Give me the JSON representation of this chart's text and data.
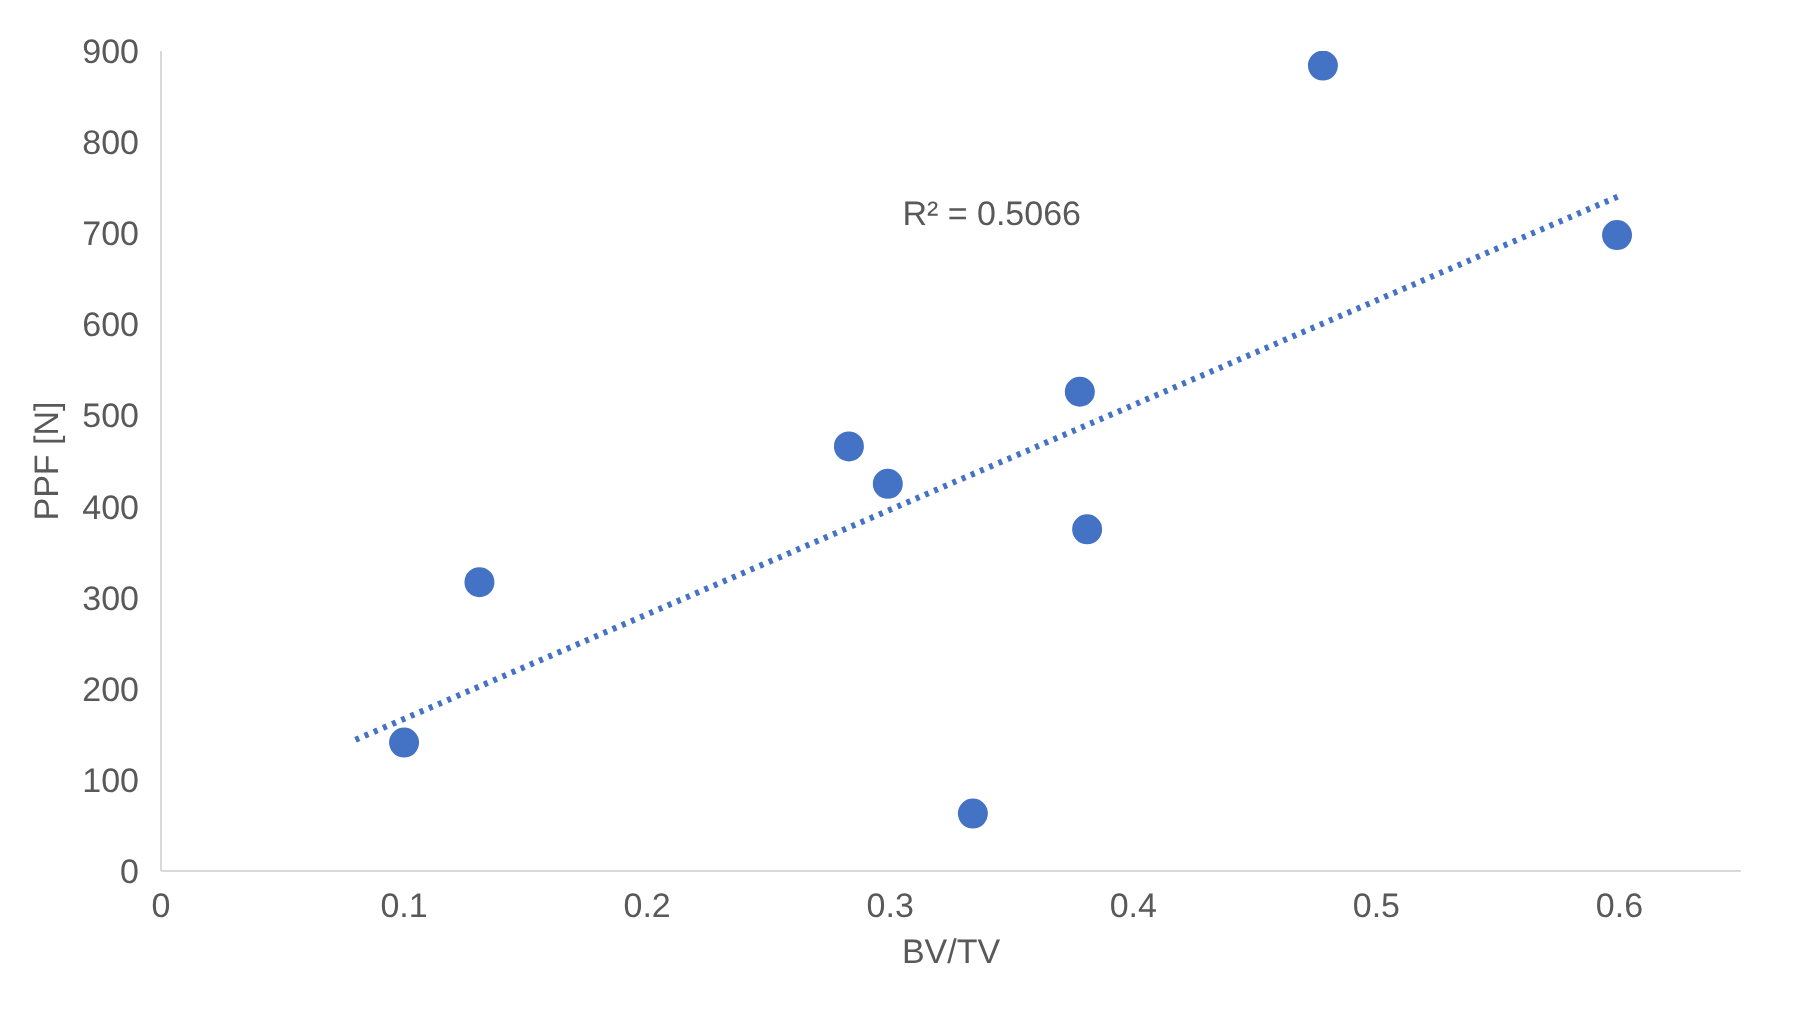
{
  "chart_data": {
    "type": "scatter",
    "xlabel": "BV/TV",
    "ylabel": "PPF [N]",
    "xlim": [
      0,
      0.65
    ],
    "ylim": [
      0,
      900
    ],
    "xticks": [
      0,
      0.1,
      0.2,
      0.3,
      0.4,
      0.5,
      0.6
    ],
    "yticks": [
      0,
      100,
      200,
      300,
      400,
      500,
      600,
      700,
      800,
      900
    ],
    "grid": false,
    "marker": "circle",
    "series": [
      {
        "color": "#4472c4",
        "x": [
          0.1,
          0.131,
          0.283,
          0.299,
          0.334,
          0.378,
          0.381,
          0.478,
          0.599
        ],
        "values": [
          141,
          317,
          466,
          425,
          63,
          526,
          375,
          884,
          698
        ]
      },
      {
        "type": "line",
        "color": "#4472c4",
        "line_style": "dotted",
        "marker": "none",
        "x": [
          0.08,
          0.6
        ],
        "values": [
          144,
          741
        ]
      }
    ],
    "annotations": [
      "R² = 0.5066"
    ]
  }
}
